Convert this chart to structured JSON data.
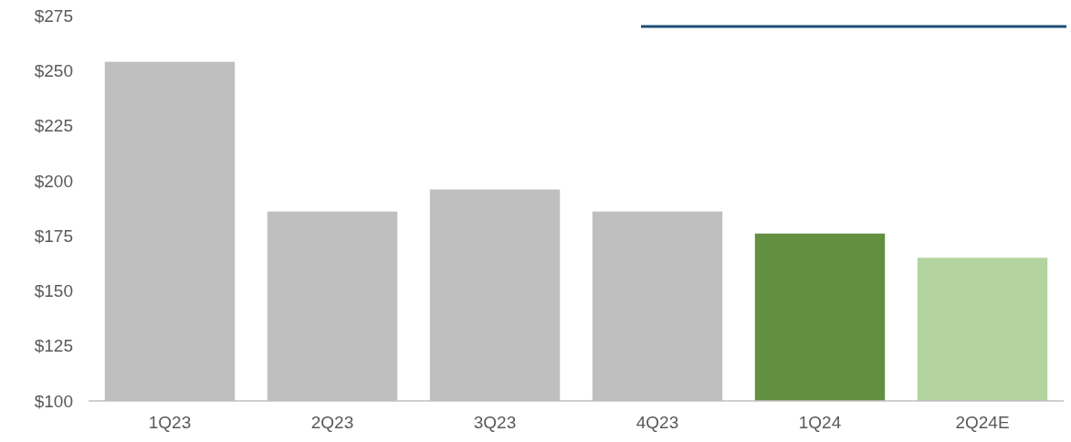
{
  "chart_data": {
    "type": "bar",
    "categories": [
      "1Q23",
      "2Q23",
      "3Q23",
      "4Q23",
      "1Q24",
      "2Q24E"
    ],
    "values": [
      254,
      186,
      196,
      186,
      176,
      165
    ],
    "colors": [
      "#bfbfbf",
      "#bfbfbf",
      "#bfbfbf",
      "#bfbfbf",
      "#629040",
      "#b3d49e"
    ],
    "ylim": [
      100,
      275
    ],
    "yticks": [
      {
        "value": 100,
        "label": "$100"
      },
      {
        "value": 125,
        "label": "$125"
      },
      {
        "value": 150,
        "label": "$150"
      },
      {
        "value": 175,
        "label": "$175"
      },
      {
        "value": 200,
        "label": "$200"
      },
      {
        "value": 225,
        "label": "$225"
      },
      {
        "value": 250,
        "label": "$250"
      },
      {
        "value": 275,
        "label": "$275"
      }
    ],
    "grid": false
  }
}
